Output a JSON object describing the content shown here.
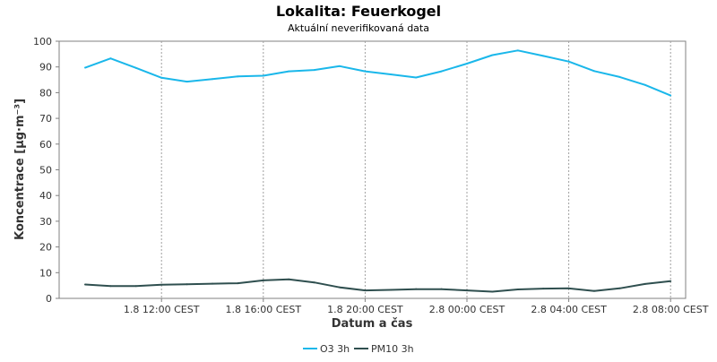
{
  "chart_data": {
    "type": "line",
    "title": "Lokalita: Feuerkogel",
    "subtitle": "Aktuální neverifikovaná data",
    "xlabel": "Datum a čas",
    "ylabel": "Koncentrace [µg·m⁻³]",
    "ylim": [
      0,
      100
    ],
    "yticks": [
      0,
      10,
      20,
      30,
      40,
      50,
      60,
      70,
      80,
      90,
      100
    ],
    "xtick_labels": [
      "1.8 12:00 CEST",
      "1.8 16:00 CEST",
      "1.8 20:00 CEST",
      "2.8 00:00 CEST",
      "2.8 04:00 CEST",
      "2.8 08:00 CEST"
    ],
    "x_index_of_ticks": [
      3,
      7,
      11,
      15,
      19,
      23
    ],
    "grid": true,
    "legend_position": "bottom-center",
    "series": [
      {
        "name": "O3 3h",
        "color": "#1ab7ea",
        "values": [
          89.7,
          93.3,
          89.6,
          85.8,
          84.3,
          85.3,
          86.3,
          86.6,
          88.3,
          88.8,
          90.3,
          88.3,
          87.1,
          85.9,
          88.3,
          91.3,
          94.6,
          96.4,
          94.3,
          92.1,
          88.4,
          86.1,
          83.0,
          78.9
        ]
      },
      {
        "name": "PM10 3h",
        "color": "#2f4f4f",
        "values": [
          5.4,
          4.8,
          4.8,
          5.3,
          5.5,
          5.7,
          5.9,
          7.0,
          7.4,
          6.2,
          4.3,
          3.1,
          3.3,
          3.6,
          3.6,
          3.1,
          2.6,
          3.5,
          3.8,
          3.9,
          2.9,
          3.9,
          5.6,
          6.7
        ]
      }
    ]
  }
}
